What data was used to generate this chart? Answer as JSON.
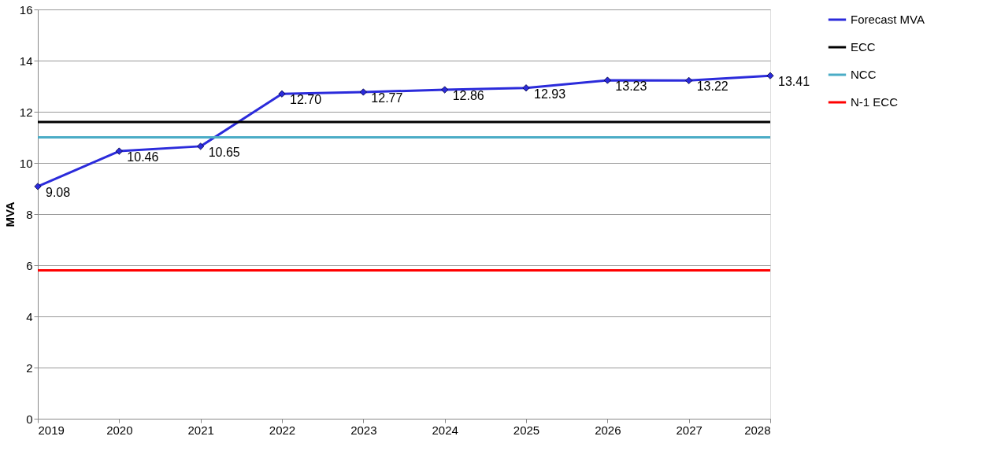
{
  "chart_data": {
    "type": "line",
    "ylabel": "MVA",
    "x": [
      2019,
      2020,
      2021,
      2022,
      2023,
      2024,
      2025,
      2026,
      2027,
      2028
    ],
    "xlim": [
      2019,
      2028
    ],
    "xticks": [
      2019,
      2020,
      2021,
      2022,
      2023,
      2024,
      2025,
      2026,
      2027,
      2028
    ],
    "ylim": [
      0,
      16
    ],
    "yticks": [
      0,
      2,
      4,
      6,
      8,
      10,
      12,
      14,
      16
    ],
    "grid": "y",
    "legend": "right",
    "line_style": "solid",
    "series": [
      {
        "name": "Forecast MVA",
        "color": "#2b2bdb",
        "marker": "diamond",
        "values": [
          9.08,
          10.46,
          10.65,
          12.7,
          12.77,
          12.86,
          12.93,
          13.23,
          13.22,
          13.41
        ],
        "value_labels": [
          "9.08",
          "10.46",
          "10.65",
          "12.70",
          "12.77",
          "12.86",
          "12.93",
          "13.23",
          "13.22",
          "13.41"
        ]
      },
      {
        "name": "ECC",
        "color": "#000000",
        "marker": "none",
        "values": [
          11.6,
          11.6,
          11.6,
          11.6,
          11.6,
          11.6,
          11.6,
          11.6,
          11.6,
          11.6
        ]
      },
      {
        "name": "NCC",
        "color": "#4bacc6",
        "marker": "none",
        "values": [
          11.0,
          11.0,
          11.0,
          11.0,
          11.0,
          11.0,
          11.0,
          11.0,
          11.0,
          11.0
        ]
      },
      {
        "name": "N-1 ECC",
        "color": "#ff0000",
        "marker": "none",
        "values": [
          5.8,
          5.8,
          5.8,
          5.8,
          5.8,
          5.8,
          5.8,
          5.8,
          5.8,
          5.8
        ]
      }
    ]
  }
}
